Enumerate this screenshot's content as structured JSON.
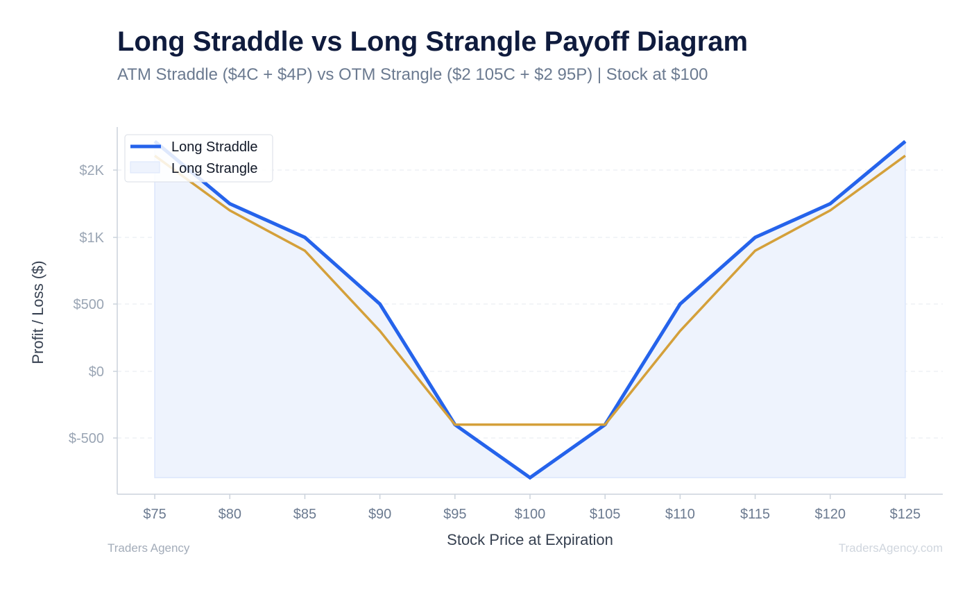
{
  "title": "Long Straddle vs Long Strangle Payoff Diagram",
  "subtitle": "ATM Straddle ($4C + $4P) vs OTM Strangle ($2 105C + $2 95P) | Stock at $100",
  "footer": {
    "left": "Traders Agency",
    "right": "TradersAgency.com"
  },
  "colors": {
    "straddle": "#2563eb",
    "strangle": "#d4a03a",
    "fill": "#eef3fd",
    "axis": "#cbd2dc",
    "grid": "#e5e9ef",
    "tick_text": "#6b7a90",
    "axis_title": "#374151"
  },
  "chart_data": {
    "type": "line",
    "xlabel": "Stock Price at Expiration",
    "ylabel": "Profit / Loss ($)",
    "xlim": [
      72.5,
      127.5
    ],
    "ylim": [
      -925,
      2300
    ],
    "x_ticks": [
      75,
      80,
      85,
      90,
      95,
      100,
      105,
      110,
      115,
      120,
      125
    ],
    "x_tick_labels": [
      "$75",
      "$80",
      "$85",
      "$90",
      "$95",
      "$100",
      "$105",
      "$110",
      "$115",
      "$120",
      "$125"
    ],
    "y_ticks": [
      -500,
      0,
      500,
      1000,
      2000
    ],
    "y_tick_labels": [
      "$-500",
      "$0",
      "$500",
      "$1K",
      "$2K"
    ],
    "y_scale": "piecewise (ticks $1K and $2K are spaced like $500 steps)",
    "grid": true,
    "legend": "top-left",
    "series": [
      {
        "name": "Long Straddle",
        "style": "line with light fill",
        "x": [
          75,
          80,
          85,
          90,
          95,
          100,
          105,
          110,
          115,
          120,
          125
        ],
        "y": [
          2200,
          1500,
          1000,
          500,
          -400,
          -800,
          -400,
          500,
          1000,
          1500,
          2200
        ]
      },
      {
        "name": "Long Strangle",
        "style": "line",
        "x": [
          75,
          80,
          85,
          90,
          95,
          100,
          105,
          110,
          115,
          120,
          125
        ],
        "y": [
          2100,
          1400,
          900,
          300,
          -400,
          -400,
          -400,
          300,
          900,
          1400,
          2100
        ]
      }
    ]
  }
}
